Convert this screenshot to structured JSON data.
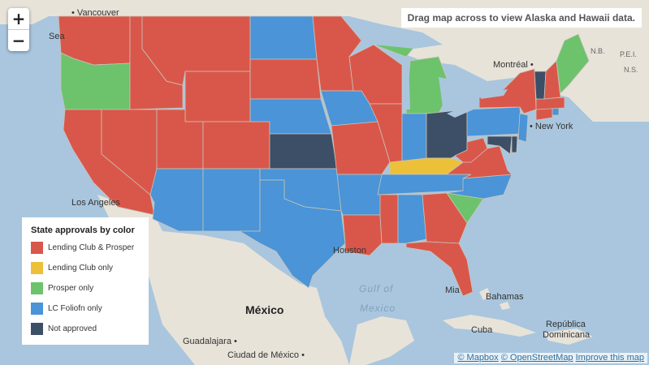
{
  "zoom": {
    "in_label": "+",
    "out_label": "−"
  },
  "notice": "Drag map across to view Alaska and Hawaii data.",
  "legend": {
    "title": "State approvals by color",
    "items": [
      {
        "label": "Lending Club & Prosper",
        "color": "#d9574a"
      },
      {
        "label": "Lending Club only",
        "color": "#ecc038"
      },
      {
        "label": "Prosper only",
        "color": "#6cc36c"
      },
      {
        "label": "LC Foliofn only",
        "color": "#4a94d7"
      },
      {
        "label": "Not approved",
        "color": "#3c4f66"
      }
    ]
  },
  "attribution": {
    "mapbox": "© Mapbox",
    "osm": "© OpenStreetMap",
    "improve": "Improve this map"
  },
  "places": {
    "vancouver": "Vancouver",
    "sea": "Sea",
    "montreal": "Montréal",
    "new_york": "New York",
    "los_angeles": "Los Angeles",
    "houston": "Houston",
    "miami": "Mia",
    "mexico": "México",
    "gulf1": "Gulf of",
    "gulf2": "Mexico",
    "bahamas": "Bahamas",
    "cuba": "Cuba",
    "guadalajara": "Guadalajara",
    "ciudad": "Ciudad de México",
    "republica": "República",
    "dominicana": "Dominicana",
    "nb": "N.B.",
    "pei": "P.E.I.",
    "ns": "N.S."
  },
  "colors": {
    "both": "#d9574a",
    "lc_only": "#ecc038",
    "prosper_only": "#6cc36c",
    "foliofn_only": "#4a94d7",
    "not_approved": "#3c4f66",
    "land": "#e8e3d9",
    "water": "#a9c6de"
  }
}
